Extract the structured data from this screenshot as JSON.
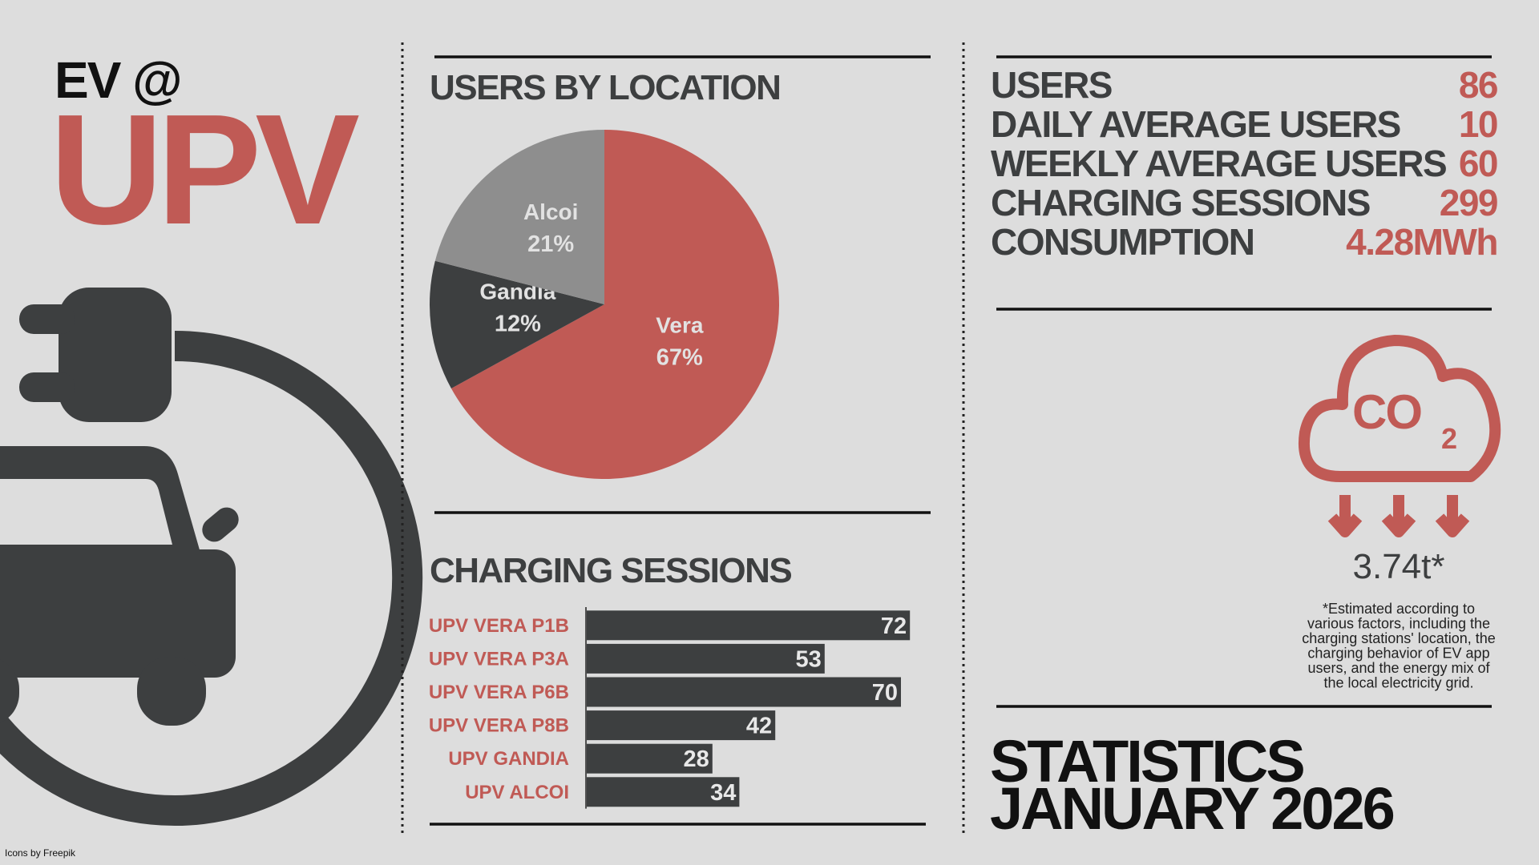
{
  "header": {
    "line1": "EV @",
    "line2": "UPV"
  },
  "chart_data": [
    {
      "type": "pie",
      "title": "USERS BY LOCATION",
      "categories": [
        "Vera",
        "Gandia",
        "Alcoi"
      ],
      "values": [
        67,
        12,
        21
      ],
      "value_labels": [
        "67%",
        "12%",
        "21%"
      ],
      "colors": [
        "#c05a55",
        "#3d3f40",
        "#8e8e8e"
      ]
    },
    {
      "type": "bar",
      "title": "CHARGING SESSIONS",
      "categories": [
        "UPV VERA P1B",
        "UPV VERA P3A",
        "UPV VERA P6B",
        "UPV VERA P8B",
        "UPV GANDIA",
        "UPV ALCOI"
      ],
      "values": [
        72,
        53,
        70,
        42,
        28,
        34
      ],
      "color": "#3d3f40",
      "label_color": "#c05a55"
    }
  ],
  "stats": {
    "rows": [
      [
        "USERS",
        86
      ],
      [
        "DAILY AVERAGE USERS",
        10
      ],
      [
        "WEEKLY AVERAGE USERS",
        60
      ],
      [
        "CHARGING SESSIONS",
        299
      ],
      [
        "CONSUMPTION",
        "4.28MWh"
      ]
    ]
  },
  "co2": {
    "icon_label": "CO",
    "icon_subscript": "2",
    "value": "3.74t*",
    "note": [
      "*Estimated according to",
      "various factors, including the",
      "charging stations' location, the",
      "charging behavior of EV app",
      "users, and the energy mix of",
      "the local electricity grid."
    ]
  },
  "footer": {
    "line1": "STATISTICS",
    "line2": "JANUARY 2026"
  },
  "credit": "Icons by Freepik"
}
